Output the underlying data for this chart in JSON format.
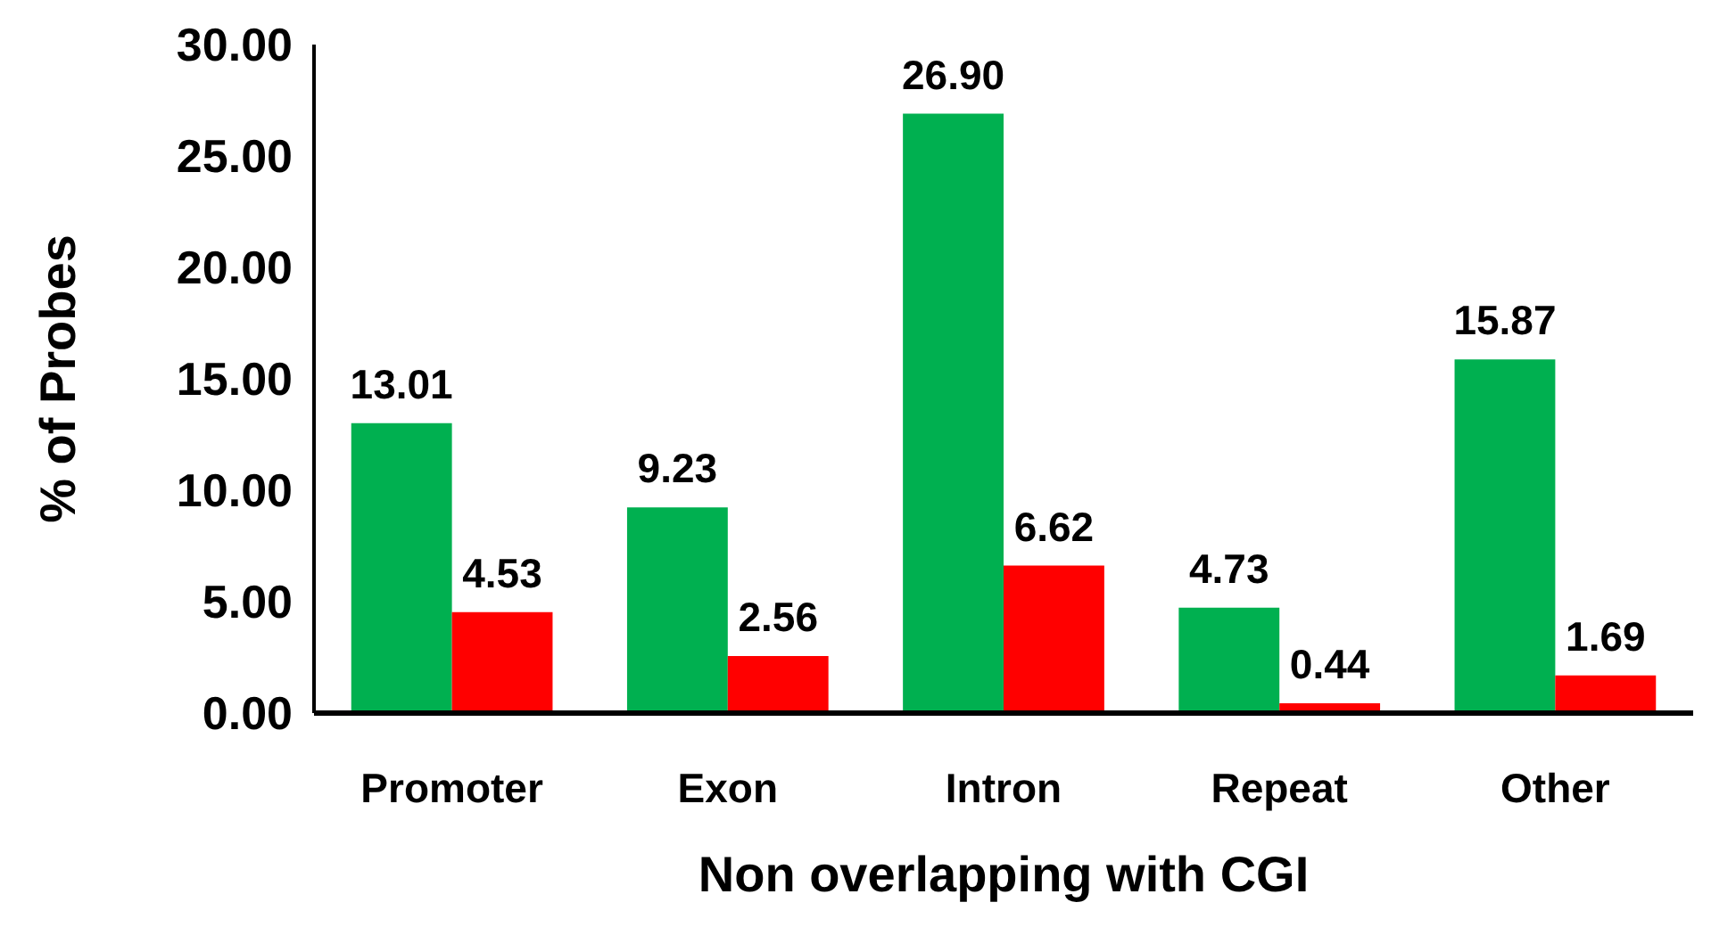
{
  "chart_data": {
    "type": "bar",
    "xlabel": "Non overlapping with CGI",
    "ylabel": "% of Probes",
    "categories": [
      "Promoter",
      "Exon",
      "Intron",
      "Repeat",
      "Other"
    ],
    "series": [
      {
        "color": "#00b050",
        "values": [
          13.01,
          9.23,
          26.9,
          4.73,
          15.87
        ],
        "value_labels": [
          "13.01",
          "9.23",
          "26.90",
          "4.73",
          "15.87"
        ]
      },
      {
        "color": "#ff0000",
        "values": [
          4.53,
          2.56,
          6.62,
          0.44,
          1.69
        ],
        "value_labels": [
          "4.53",
          "2.56",
          "6.62",
          "0.44",
          "1.69"
        ]
      }
    ],
    "ylim": [
      0,
      30
    ],
    "yticks": [
      {
        "value": 0,
        "label": "0.00"
      },
      {
        "value": 5,
        "label": "5.00"
      },
      {
        "value": 10,
        "label": "10.00"
      },
      {
        "value": 15,
        "label": "15.00"
      },
      {
        "value": 20,
        "label": "20.00"
      },
      {
        "value": 25,
        "label": "25.00"
      },
      {
        "value": 30,
        "label": "30.00"
      }
    ],
    "grid": false
  }
}
